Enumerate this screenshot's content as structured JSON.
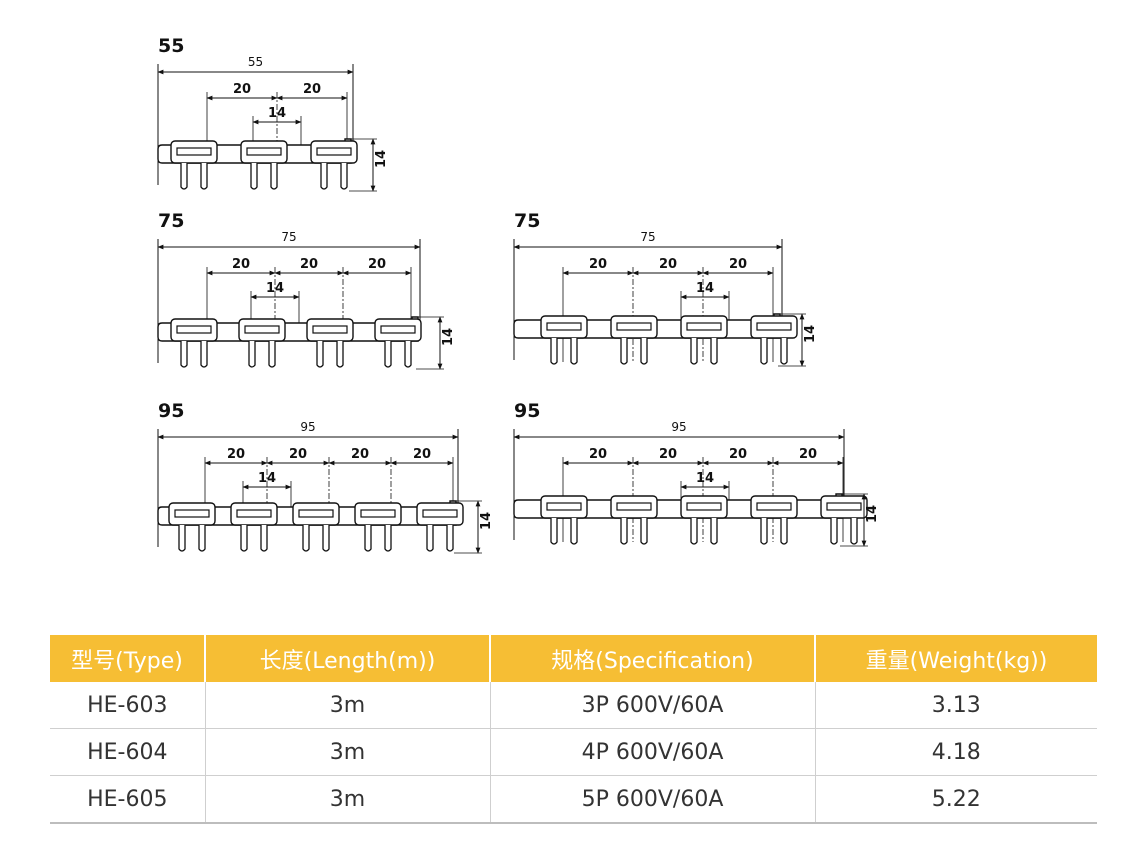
{
  "figures": [
    {
      "id": "fig55",
      "label": "55",
      "total": "55",
      "pitch": "20",
      "gap": "14",
      "height": "14",
      "poles": 3
    },
    {
      "id": "fig75a",
      "label": "75",
      "total": "75",
      "pitch": "20",
      "gap": "14",
      "height": "14",
      "poles": 4
    },
    {
      "id": "fig75b",
      "label": "75",
      "total": "75",
      "pitch": "20",
      "gap": "14",
      "height": "14",
      "poles": 4
    },
    {
      "id": "fig95a",
      "label": "95",
      "total": "95",
      "pitch": "20",
      "gap": "14",
      "height": "14",
      "poles": 5
    },
    {
      "id": "fig95b",
      "label": "95",
      "total": "95",
      "pitch": "20",
      "gap": "14",
      "height": "14",
      "poles": 5
    }
  ],
  "table": {
    "headers": [
      "型号(Type)",
      "长度(Length(m))",
      "规格(Specification)",
      "重量(Weight(kg))"
    ],
    "rows": [
      [
        "HE-603",
        "3m",
        "3P 600V/60A",
        "3.13"
      ],
      [
        "HE-604",
        "3m",
        "4P 600V/60A",
        "4.18"
      ],
      [
        "HE-605",
        "3m",
        "5P 600V/60A",
        "5.22"
      ]
    ]
  },
  "colors": {
    "header_bg": "#f6be34",
    "header_text": "#ffffff",
    "line": "#111111"
  }
}
